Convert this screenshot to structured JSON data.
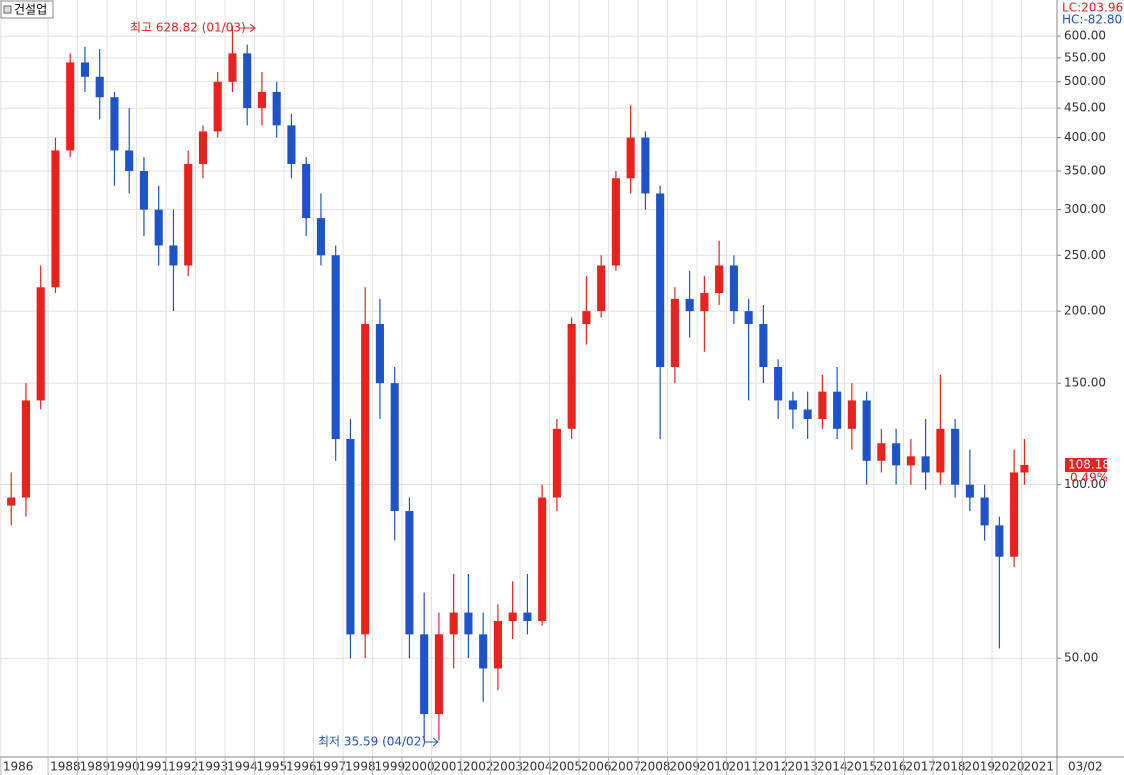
{
  "chart_data": {
    "type": "candlestick",
    "title": "건설업",
    "lc_label": "LC:203.96",
    "hc_label": "HC:-82.80",
    "high_label": "최고 628.82 (01/03)",
    "low_label": "최저 35.59 (04/02)",
    "last_price": 108.18,
    "change_label": "0.49%",
    "date_label": "03/02",
    "log_y": true,
    "grid": true,
    "up_color": "#e8231e",
    "down_color": "#1f54c8",
    "xlim": [
      1986.37,
      2022.17
    ],
    "ylim": [
      33.7,
      693
    ],
    "xticks": [
      {
        "value": 1986.4,
        "label": "1986"
      },
      1988,
      1989,
      1990,
      1991,
      1992,
      1993,
      1994,
      1995,
      1996,
      1997,
      1998,
      1999,
      2000,
      2001,
      2002,
      2003,
      2004,
      2005,
      2006,
      2007,
      2008,
      2009,
      2010,
      2011,
      2012,
      2013,
      2014,
      2015,
      2016,
      2017,
      2018,
      2019,
      2020,
      2021
    ],
    "yticks": [
      {
        "value": 50,
        "label": "50.00"
      },
      {
        "value": 100,
        "label": "100.00"
      },
      {
        "value": 150,
        "label": "150.00"
      },
      {
        "value": 200,
        "label": "200.00"
      },
      {
        "value": 250,
        "label": "250.00"
      },
      {
        "value": 300,
        "label": "300.00"
      },
      {
        "value": 350,
        "label": "350.00"
      },
      {
        "value": 400,
        "label": "400.00"
      },
      {
        "value": 450,
        "label": "450.00"
      },
      {
        "value": 500,
        "label": "500.00"
      },
      {
        "value": 550,
        "label": "550.00"
      },
      {
        "value": 600,
        "label": "600.00"
      }
    ],
    "x": [
      1986.75,
      1987.25,
      1987.75,
      1988.25,
      1988.75,
      1989.25,
      1989.75,
      1990.25,
      1990.75,
      1991.25,
      1991.75,
      1992.25,
      1992.75,
      1993.25,
      1993.75,
      1994.25,
      1994.75,
      1995.25,
      1995.75,
      1996.25,
      1996.75,
      1997.25,
      1997.75,
      1998.25,
      1998.75,
      1999.25,
      1999.75,
      2000.25,
      2000.75,
      2001.25,
      2001.75,
      2002.25,
      2002.75,
      2003.25,
      2003.75,
      2004.25,
      2004.75,
      2005.25,
      2005.75,
      2006.25,
      2006.75,
      2007.25,
      2007.75,
      2008.25,
      2008.75,
      2009.25,
      2009.75,
      2010.25,
      2010.75,
      2011.25,
      2011.75,
      2012.25,
      2012.75,
      2013.25,
      2013.75,
      2014.25,
      2014.75,
      2015.25,
      2015.75,
      2016.25,
      2016.75,
      2017.25,
      2017.75,
      2018.25,
      2018.75,
      2019.25,
      2019.75,
      2020.25,
      2020.75,
      2021.1
    ],
    "open": [
      92,
      95,
      140,
      220,
      380,
      540,
      510,
      470,
      380,
      350,
      300,
      260,
      240,
      360,
      410,
      500,
      560,
      450,
      480,
      420,
      360,
      290,
      250,
      120,
      55,
      190,
      150,
      90,
      55,
      40,
      55,
      60,
      55,
      48,
      58,
      60,
      58,
      95,
      125,
      190,
      200,
      240,
      340,
      400,
      320,
      160,
      210,
      200,
      215,
      240,
      200,
      190,
      160,
      140,
      135,
      130,
      145,
      125,
      140,
      110,
      118,
      108,
      112,
      105,
      125,
      100,
      95,
      85,
      75,
      105
    ],
    "high": [
      105,
      150,
      240,
      400,
      560,
      575,
      570,
      480,
      450,
      370,
      330,
      300,
      380,
      420,
      520,
      625,
      580,
      520,
      500,
      440,
      370,
      320,
      260,
      130,
      220,
      210,
      160,
      95,
      65,
      60,
      70,
      70,
      60,
      62,
      68,
      70,
      100,
      130,
      195,
      230,
      250,
      350,
      455,
      410,
      330,
      220,
      235,
      230,
      265,
      250,
      210,
      205,
      165,
      145,
      145,
      155,
      160,
      150,
      145,
      125,
      125,
      120,
      130,
      155,
      130,
      115,
      100,
      88,
      115,
      120
    ],
    "low": [
      85,
      88,
      135,
      215,
      370,
      480,
      430,
      330,
      320,
      270,
      240,
      200,
      230,
      340,
      400,
      480,
      420,
      420,
      400,
      340,
      270,
      240,
      110,
      50,
      50,
      130,
      80,
      50,
      36,
      36,
      48,
      50,
      42,
      44,
      54,
      55,
      57,
      90,
      120,
      175,
      195,
      235,
      320,
      300,
      120,
      150,
      180,
      170,
      205,
      190,
      140,
      150,
      130,
      125,
      120,
      125,
      120,
      115,
      100,
      105,
      100,
      100,
      98,
      100,
      95,
      90,
      80,
      52,
      72,
      100
    ],
    "close": [
      95,
      140,
      220,
      380,
      540,
      510,
      470,
      380,
      350,
      300,
      260,
      240,
      360,
      410,
      500,
      560,
      450,
      480,
      420,
      360,
      290,
      250,
      120,
      55,
      190,
      150,
      90,
      55,
      40,
      55,
      60,
      55,
      48,
      58,
      60,
      58,
      95,
      125,
      190,
      200,
      240,
      340,
      400,
      320,
      160,
      210,
      200,
      215,
      240,
      200,
      190,
      160,
      140,
      135,
      130,
      145,
      125,
      140,
      110,
      118,
      108,
      112,
      105,
      125,
      100,
      95,
      85,
      75,
      105,
      108.18
    ]
  }
}
